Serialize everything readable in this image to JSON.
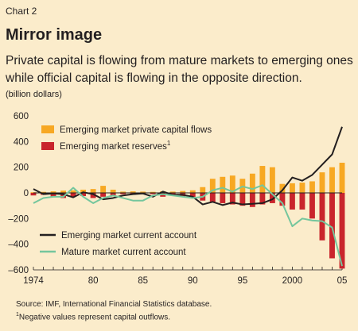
{
  "header": {
    "chart_number": "Chart 2",
    "title": "Mirror image",
    "subtitle": "Private capital is flowing from mature markets to emerging ones while official capital is flowing in the opposite direction.",
    "unit": "(billion dollars)"
  },
  "notes": {
    "source": "Source: IMF, International Financial Statistics database.",
    "footnote_mark": "1",
    "footnote": "Negative values represent capital outflows."
  },
  "colors": {
    "private_flows": "#f7a823",
    "reserves": "#c9252c",
    "em_current_account": "#231f20",
    "mature_current_account": "#74c69d",
    "zero_line": "#231f20"
  },
  "chart_data": {
    "type": "bar",
    "x": [
      1974,
      1975,
      1976,
      1977,
      1978,
      1979,
      1980,
      1981,
      1982,
      1983,
      1984,
      1985,
      1986,
      1987,
      1988,
      1989,
      1990,
      1991,
      1992,
      1993,
      1994,
      1995,
      1996,
      1997,
      1998,
      1999,
      2000,
      2001,
      2002,
      2003,
      2004,
      2005
    ],
    "x_tick_labels": [
      {
        "year": 1974,
        "label": "1974"
      },
      {
        "year": 1980,
        "label": "80"
      },
      {
        "year": 1985,
        "label": "85"
      },
      {
        "year": 1990,
        "label": "90"
      },
      {
        "year": 1995,
        "label": "95"
      },
      {
        "year": 2000,
        "label": "2000"
      },
      {
        "year": 2005,
        "label": "05"
      }
    ],
    "ylim": [
      -600,
      600
    ],
    "y_ticks": [
      -600,
      -400,
      -200,
      0,
      200,
      400,
      600
    ],
    "y_tick_labels": [
      "–600",
      "–400",
      "–200",
      "0",
      "200",
      "400",
      "600"
    ],
    "legend_placement": "top-left and bottom-left",
    "series": [
      {
        "name": "Emerging market private capital flows",
        "kind": "bar",
        "values": [
          5,
          8,
          12,
          18,
          20,
          25,
          30,
          55,
          25,
          10,
          12,
          10,
          8,
          12,
          10,
          15,
          20,
          45,
          110,
          125,
          135,
          110,
          150,
          210,
          200,
          70,
          75,
          80,
          90,
          160,
          200,
          235
        ]
      },
      {
        "name": "Emerging market reserves",
        "name_superscript": "1",
        "kind": "bar",
        "values": [
          -20,
          -15,
          -30,
          -40,
          -30,
          -25,
          -40,
          -30,
          -20,
          -10,
          -15,
          -10,
          -10,
          -30,
          -20,
          -30,
          -40,
          -60,
          -70,
          -80,
          -90,
          -100,
          -110,
          -90,
          -80,
          -100,
          -130,
          -130,
          -200,
          -370,
          -510,
          -590
        ]
      },
      {
        "name": "Emerging market current account",
        "kind": "line",
        "values": [
          30,
          -10,
          -5,
          -10,
          -35,
          5,
          -10,
          -50,
          -40,
          -20,
          -10,
          -5,
          -30,
          10,
          -15,
          -15,
          -30,
          -90,
          -70,
          -95,
          -75,
          -90,
          -85,
          -80,
          -50,
          20,
          120,
          95,
          140,
          220,
          300,
          515
        ]
      },
      {
        "name": "Mature market current account",
        "kind": "line",
        "values": [
          -80,
          -40,
          -30,
          -30,
          40,
          -30,
          -80,
          -40,
          -20,
          -40,
          -60,
          -60,
          -20,
          -10,
          -20,
          -30,
          -40,
          -30,
          20,
          40,
          10,
          50,
          30,
          60,
          -10,
          -80,
          -260,
          -200,
          -215,
          -220,
          -270,
          -570
        ]
      }
    ]
  }
}
